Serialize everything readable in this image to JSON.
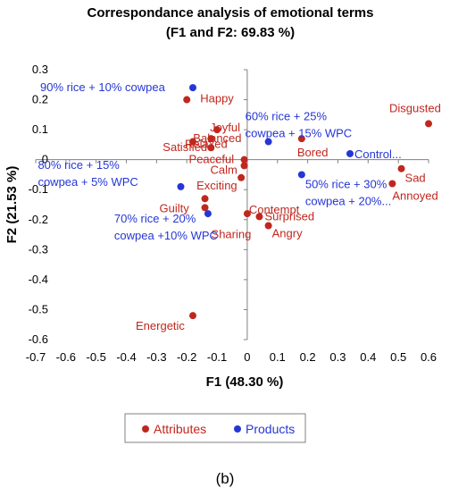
{
  "chart_data": {
    "type": "scatter",
    "title_line1": "Correspondance analysis of emotional terms",
    "title_line2": "(F1 and F2: 69.83 %)",
    "xlabel": "F1 (48.30 %)",
    "ylabel": "F2 (21.53 %)",
    "xlim": [
      -0.7,
      0.6
    ],
    "ylim": [
      -0.6,
      0.3
    ],
    "xticks": [
      -0.7,
      -0.6,
      -0.5,
      -0.4,
      -0.3,
      -0.2,
      -0.1,
      0,
      0.1,
      0.2,
      0.3,
      0.4,
      0.5,
      0.6
    ],
    "yticks": [
      -0.6,
      -0.5,
      -0.4,
      -0.3,
      -0.2,
      -0.1,
      0,
      0.1,
      0.2,
      0.3
    ],
    "xtick_labels": [
      "-0.7",
      "-0.6",
      "-0.5",
      "-0.4",
      "-0.3",
      "-0.2",
      "-0.1",
      "0",
      "0.1",
      "0.2",
      "0.3",
      "0.4",
      "0.5",
      "0.6"
    ],
    "ytick_labels": [
      "-0.6",
      "-0.5",
      "-0.4",
      "-0.3",
      "-0.2",
      "-0.1",
      "0",
      "0.1",
      "0.2",
      "0.3"
    ],
    "grid": false,
    "legend_position": "bottom",
    "colors": {
      "attributes": "#c0271d",
      "products": "#2536d6",
      "axis": "#808080"
    },
    "series": [
      {
        "name": "Attributes",
        "points": [
          {
            "label": "Happy",
            "x": -0.2,
            "y": 0.2
          },
          {
            "label": "Joyful",
            "x": -0.1,
            "y": 0.1
          },
          {
            "label": "Balanced",
            "x": -0.12,
            "y": 0.07
          },
          {
            "label": "Relaxed",
            "x": -0.18,
            "y": 0.06
          },
          {
            "label": "Satisfied",
            "x": -0.12,
            "y": 0.04
          },
          {
            "label": "Peaceful",
            "x": -0.01,
            "y": 0.0
          },
          {
            "label": "Calm",
            "x": -0.01,
            "y": -0.02
          },
          {
            "label": "Exciting",
            "x": -0.02,
            "y": -0.06
          },
          {
            "label": "Guilty",
            "x": -0.14,
            "y": -0.13
          },
          {
            "label": "Contempt",
            "x": 0.0,
            "y": -0.18
          },
          {
            "label": "Surprised",
            "x": 0.04,
            "y": -0.19
          },
          {
            "label": "Sharing",
            "x": -0.14,
            "y": -0.16
          },
          {
            "label": "Angry",
            "x": 0.07,
            "y": -0.22
          },
          {
            "label": "Bored",
            "x": 0.18,
            "y": 0.07
          },
          {
            "label": "Disgusted",
            "x": 0.6,
            "y": 0.12
          },
          {
            "label": "Sad",
            "x": 0.51,
            "y": -0.03
          },
          {
            "label": "Annoyed",
            "x": 0.48,
            "y": -0.08
          },
          {
            "label": "Energetic",
            "x": -0.18,
            "y": -0.52
          }
        ]
      },
      {
        "name": "Products",
        "points": [
          {
            "label": "90% rice + 10% cowpea",
            "x": -0.18,
            "y": 0.24
          },
          {
            "label": "60% rice + 25% cowpea + 15% WPC",
            "x": 0.07,
            "y": 0.06
          },
          {
            "label": "Control...",
            "x": 0.34,
            "y": 0.02
          },
          {
            "label": "80% rice + 15% cowpea + 5% WPC",
            "x": -0.22,
            "y": -0.09
          },
          {
            "label": "50% rice + 30% cowpea + 20%...",
            "x": 0.18,
            "y": -0.05
          },
          {
            "label": "70% rice + 20% cowpea +10% WPC",
            "x": -0.13,
            "y": -0.18
          }
        ]
      }
    ]
  },
  "legend": {
    "attributes_label": "Attributes",
    "products_label": "Products"
  },
  "caption": "(b)"
}
